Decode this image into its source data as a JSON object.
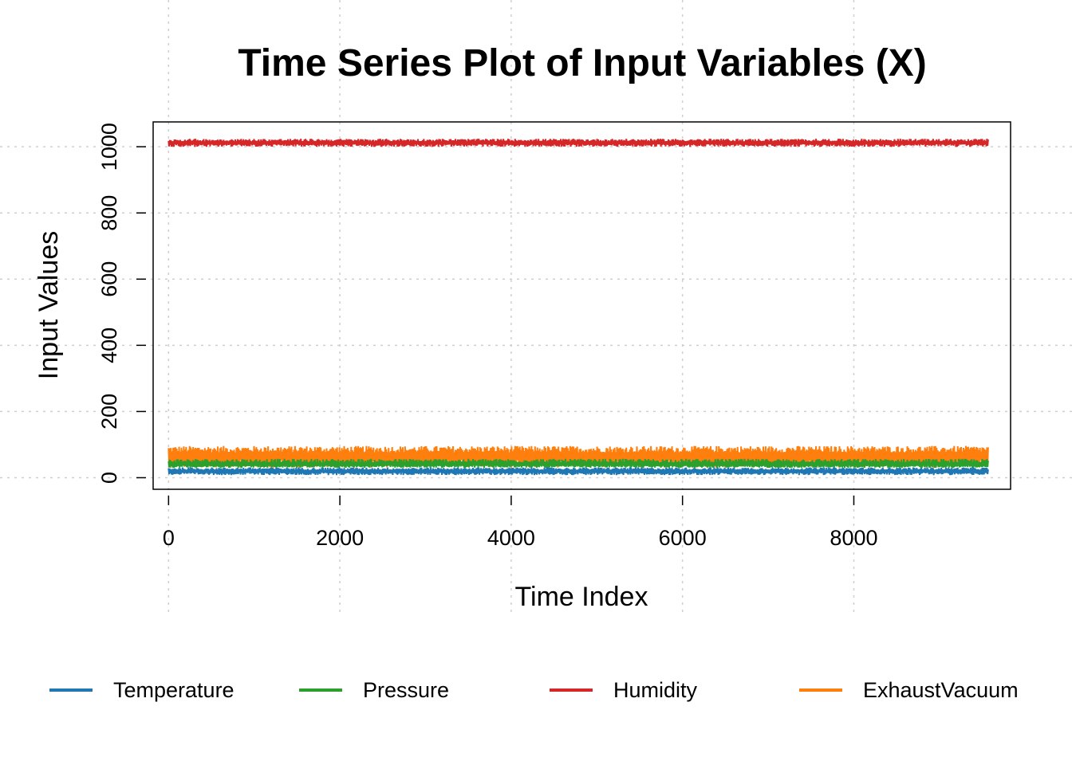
{
  "chart_data": {
    "type": "line",
    "title": "Time Series Plot of Input Variables (X)",
    "xlabel": "Time Index",
    "ylabel": "Input Values",
    "xlim": [
      -180,
      9830
    ],
    "ylim": [
      -35,
      1075
    ],
    "x_ticks": [
      "0",
      "2000",
      "4000",
      "6000",
      "8000"
    ],
    "y_ticks": [
      "0",
      "200",
      "400",
      "600",
      "800",
      "1000"
    ],
    "x_tick_values": [
      0,
      2000,
      4000,
      6000,
      8000
    ],
    "y_tick_values": [
      0,
      200,
      400,
      600,
      800,
      1000
    ],
    "grid": "dotted",
    "legend_position": "bottom",
    "x_range": [
      0,
      9568
    ],
    "series": [
      {
        "name": "Temperature",
        "color": "#1F77B4",
        "center": 19.5,
        "low": 8,
        "high": 31
      },
      {
        "name": "Pressure",
        "color": "#2CA02C",
        "center": 40,
        "low": 30,
        "high": 57
      },
      {
        "name": "Humidity",
        "color": "#D62728",
        "center": 1012,
        "low": 1000,
        "high": 1024
      },
      {
        "name": "ExhaustVacuum",
        "color": "#FF7F0E",
        "center": 66,
        "low": 30,
        "high": 96
      }
    ]
  }
}
